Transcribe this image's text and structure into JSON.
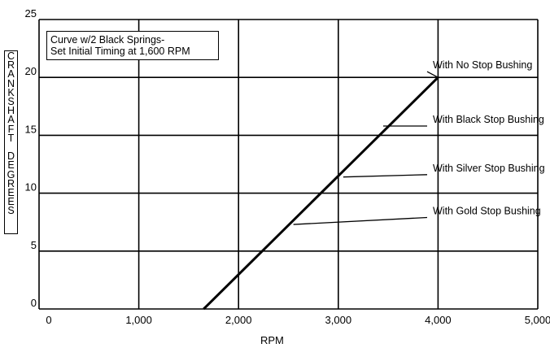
{
  "chart_data": {
    "type": "line",
    "title_lines": [
      "Curve w/2 Black Springs-",
      "Set Initial Timing at 1,600 RPM"
    ],
    "xlabel": "RPM",
    "ylabel": "CRANKSHAFT DEGREES",
    "xlim": [
      0,
      5000
    ],
    "ylim": [
      0,
      25
    ],
    "xticks": [
      0,
      1000,
      2000,
      3000,
      4000,
      5000
    ],
    "xtick_labels": [
      "0",
      "1,000",
      "2,000",
      "3,000",
      "4,000",
      "5,000"
    ],
    "yticks": [
      0,
      5,
      10,
      15,
      20,
      25
    ],
    "ytick_labels": [
      "0",
      "5",
      "10",
      "15",
      "20",
      "25"
    ],
    "grid": true,
    "series": [
      {
        "x": [
          1650,
          4000
        ],
        "y": [
          0,
          20
        ]
      }
    ],
    "annotations": [
      {
        "text": "With No Stop Bushing",
        "x": 4000,
        "y": 20,
        "label_y": 20.5
      },
      {
        "text": "With Black Stop Bushing",
        "x": 3450,
        "y": 15.8,
        "label_y": 15.8
      },
      {
        "text": "With Silver Stop Bushing",
        "x": 3050,
        "y": 11.4,
        "label_y": 11.6
      },
      {
        "text": "With Gold Stop Bushing",
        "x": 2550,
        "y": 7.3,
        "label_y": 7.9
      }
    ]
  }
}
